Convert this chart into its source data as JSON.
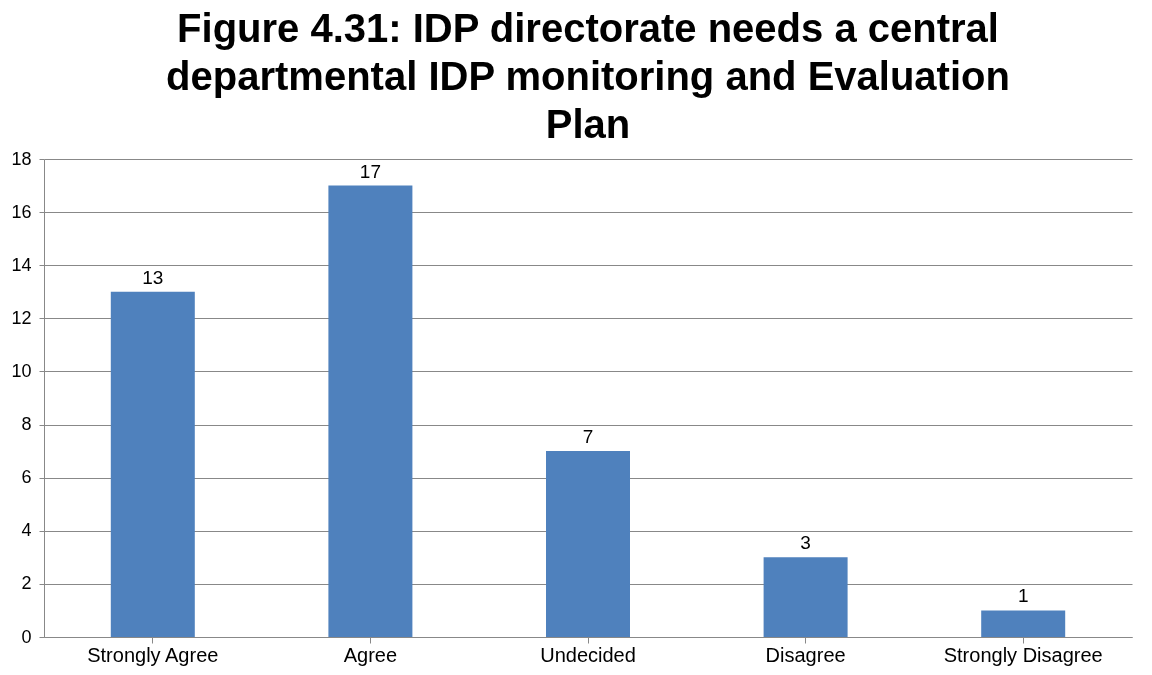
{
  "chart_data": {
    "type": "bar",
    "title": "Figure 4.31: IDP directorate needs a central departmental IDP monitoring and Evaluation Plan",
    "categories": [
      "Strongly Agree",
      "Agree",
      "Undecided",
      "Disagree",
      "Strongly Disagree"
    ],
    "values": [
      13,
      17,
      7,
      3,
      1
    ],
    "color": "#4f81bd",
    "ylim": [
      0,
      18
    ],
    "yticks": [
      0,
      2,
      4,
      6,
      8,
      10,
      12,
      14,
      16,
      18
    ],
    "grid": "y",
    "data_labels": true
  }
}
